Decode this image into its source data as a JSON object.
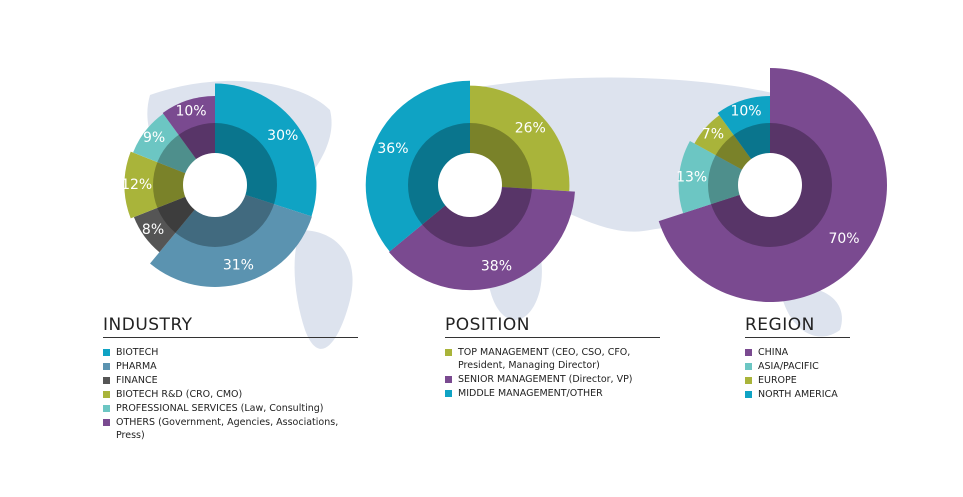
{
  "chart_data": [
    {
      "type": "pie",
      "title": "INDUSTRY",
      "categories": [
        "BIOTECH",
        "PHARMA",
        "FINANCE",
        "BIOTECH R&D (CRO, CMO)",
        "PROFESSIONAL SERVICES (Law, Consulting)",
        "OTHERS (Government, Agencies, Associations, Press)"
      ],
      "values": [
        30,
        31,
        8,
        12,
        9,
        10
      ],
      "value_labels": [
        "30%",
        "31%",
        "8%",
        "12%",
        "9%",
        "10%"
      ],
      "colors": [
        "#0fa3c4",
        "#5b93b0",
        "#555555",
        "#a9b43a",
        "#6cc6c3",
        "#7a4a90"
      ]
    },
    {
      "type": "pie",
      "title": "POSITION",
      "categories": [
        "TOP MANAGEMENT (CEO, CSO, CFO, President, Managing Director)",
        "SENIOR MANAGEMENT (Director, VP)",
        "MIDDLE MANAGEMENT/OTHER"
      ],
      "values": [
        26,
        38,
        36
      ],
      "value_labels": [
        "26%",
        "38%",
        "36%"
      ],
      "colors": [
        "#a9b43a",
        "#7a4a90",
        "#0fa3c4"
      ]
    },
    {
      "type": "pie",
      "title": "REGION",
      "categories": [
        "CHINA",
        "ASIA/PACIFIC",
        "EUROPE",
        "NORTH AMERICA"
      ],
      "values": [
        70,
        13,
        7,
        10
      ],
      "value_labels": [
        "70%",
        "13%",
        "7%",
        "10%"
      ],
      "colors": [
        "#7a4a90",
        "#6cc6c3",
        "#a9b43a",
        "#0fa3c4"
      ]
    }
  ]
}
